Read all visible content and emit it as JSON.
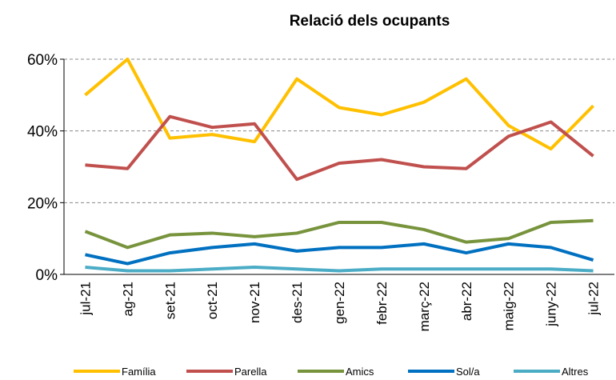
{
  "chart_data": {
    "type": "line",
    "title": "Relació dels ocupants",
    "categories": [
      "jul-21",
      "ag-21",
      "set-21",
      "oct-21",
      "nov-21",
      "des-21",
      "gen-22",
      "febr-22",
      "març-22",
      "abr-22",
      "maig-22",
      "juny-22",
      "jul-22"
    ],
    "series": [
      {
        "name": "Família",
        "color": "#FFC000",
        "values": [
          50,
          60,
          38,
          39,
          37,
          54.5,
          46.5,
          44.5,
          48,
          54.5,
          41.5,
          35,
          47
        ]
      },
      {
        "name": "Parella",
        "color": "#C0504D",
        "values": [
          30.5,
          29.5,
          44,
          41,
          42,
          26.5,
          31,
          32,
          30,
          29.5,
          38.5,
          42.5,
          33
        ]
      },
      {
        "name": "Amics",
        "color": "#77933C",
        "values": [
          12,
          7.5,
          11,
          11.5,
          10.5,
          11.5,
          14.5,
          14.5,
          12.5,
          9,
          10,
          14.5,
          15
        ]
      },
      {
        "name": "Sol/a",
        "color": "#0070C0",
        "values": [
          5.5,
          3,
          6,
          7.5,
          8.5,
          6.5,
          7.5,
          7.5,
          8.5,
          6,
          8.5,
          7.5,
          4
        ]
      },
      {
        "name": "Altres",
        "color": "#4BACC6",
        "values": [
          2,
          1,
          1,
          1.5,
          2,
          1.5,
          1,
          1.5,
          1.5,
          1.5,
          1.5,
          1.5,
          1
        ]
      }
    ],
    "ylim": [
      0,
      60
    ],
    "yticks": [
      {
        "value": 0,
        "label": "0%"
      },
      {
        "value": 20,
        "label": "20%"
      },
      {
        "value": 40,
        "label": "40%"
      },
      {
        "value": 60,
        "label": "60%"
      }
    ],
    "grid": true,
    "legend": "bottom"
  }
}
